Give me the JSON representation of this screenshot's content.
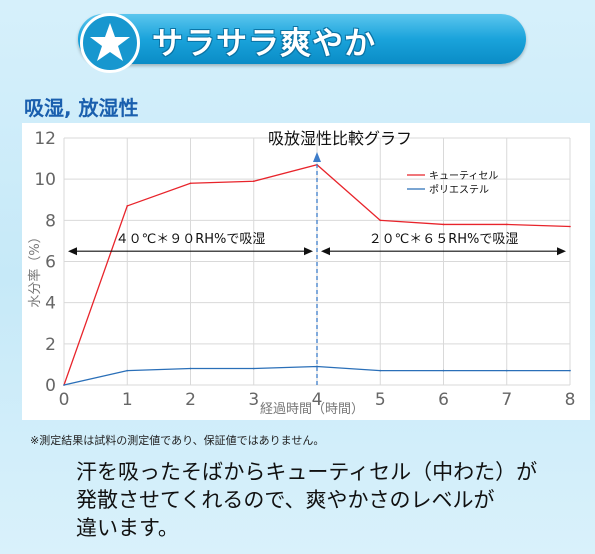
{
  "banner": {
    "title": "サラサラ爽やか",
    "icon": "star-icon"
  },
  "section_title": "吸湿, 放湿性",
  "chart_data": {
    "type": "line",
    "title": "吸放湿性比較グラフ",
    "xlabel": "経過時間（時間）",
    "ylabel": "水分率（%）",
    "xlim": [
      0,
      8
    ],
    "ylim": [
      0,
      12
    ],
    "xticks": [
      0,
      1,
      2,
      3,
      4,
      5,
      6,
      7,
      8
    ],
    "yticks": [
      0,
      2,
      4,
      6,
      8,
      10,
      12
    ],
    "grid": true,
    "legend_position": "top-right",
    "series": [
      {
        "name": "キューティセル",
        "color": "#e8242b",
        "x": [
          0,
          1,
          2,
          3,
          4,
          5,
          6,
          7,
          8
        ],
        "y": [
          0,
          8.7,
          9.8,
          9.9,
          10.7,
          8.0,
          7.8,
          7.8,
          7.7
        ]
      },
      {
        "name": "ポリエステル",
        "color": "#2a6fb8",
        "x": [
          0,
          1,
          2,
          3,
          4,
          5,
          6,
          7,
          8
        ],
        "y": [
          0,
          0.7,
          0.8,
          0.8,
          0.9,
          0.7,
          0.7,
          0.7,
          0.7
        ]
      }
    ],
    "annotations": [
      {
        "text": "４０℃＊９０RH%で吸湿",
        "from": 0,
        "to": 4,
        "y": 6.5
      },
      {
        "text": "２０℃＊６５RH%で吸湿",
        "from": 4,
        "to": 8,
        "y": 6.5
      }
    ],
    "divider_x": 4
  },
  "note": "※測定結果は試料の測定値であり、保証値ではありません。",
  "caption": {
    "line1": "汗を吸ったそばからキューティセル（中わた）が",
    "line2": "発散させてくれるので、爽やかさのレベルが",
    "line3": "違います。"
  },
  "colors": {
    "accent": "#1aa3db",
    "section": "#1a5fae"
  }
}
